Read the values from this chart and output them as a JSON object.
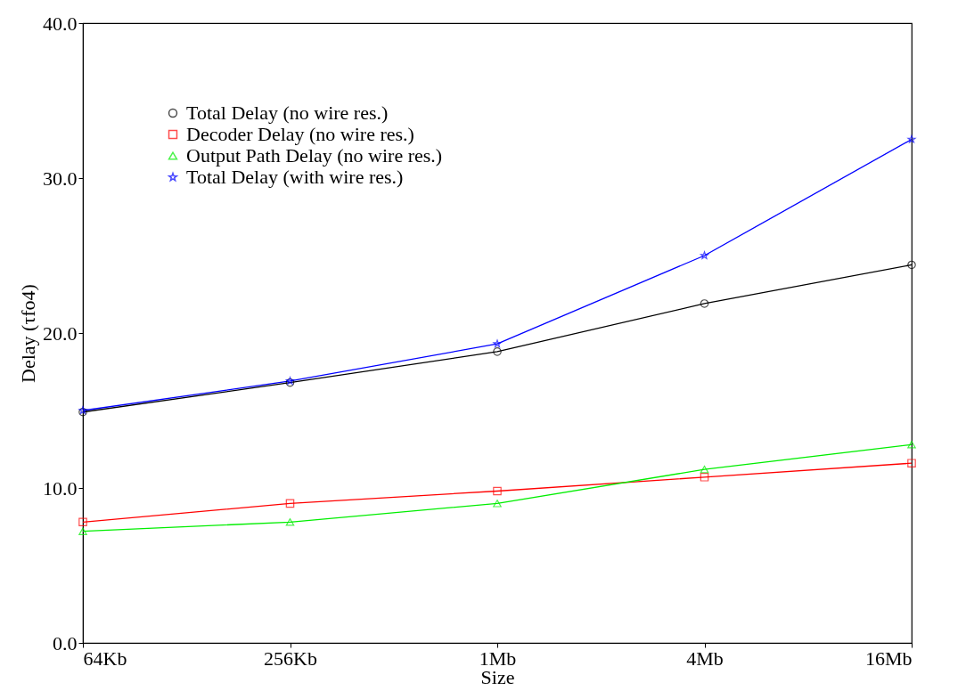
{
  "chart_data": {
    "type": "line",
    "xlabel": "Size",
    "ylabel": "Delay (τfo4)",
    "categories": [
      "64Kb",
      "256Kb",
      "1Mb",
      "4Mb",
      "16Mb"
    ],
    "series": [
      {
        "name": "Total Delay (no wire res.)",
        "color": "#000000",
        "marker": "circle",
        "values": [
          14.9,
          16.8,
          18.8,
          21.9,
          24.4
        ]
      },
      {
        "name": "Decoder Delay (no wire res.)",
        "color": "#ff0000",
        "marker": "square",
        "values": [
          7.8,
          9.0,
          9.8,
          10.7,
          11.6
        ]
      },
      {
        "name": "Output Path Delay (no wire res.)",
        "color": "#00ee00",
        "marker": "triangle",
        "values": [
          7.2,
          7.8,
          9.0,
          11.2,
          12.8
        ]
      },
      {
        "name": "Total Delay (with wire res.)",
        "color": "#0000ff",
        "marker": "star",
        "values": [
          15.0,
          16.9,
          19.3,
          25.0,
          32.5
        ]
      }
    ],
    "ylim": [
      0,
      40
    ],
    "yticks": [
      {
        "value": 0,
        "label": "0.0"
      },
      {
        "value": 10,
        "label": "10.0"
      },
      {
        "value": 20,
        "label": "20.0"
      },
      {
        "value": 30,
        "label": "30.0"
      },
      {
        "value": 40,
        "label": "40.0"
      }
    ],
    "grid": false,
    "legend": "top left",
    "line_style": "solid"
  }
}
